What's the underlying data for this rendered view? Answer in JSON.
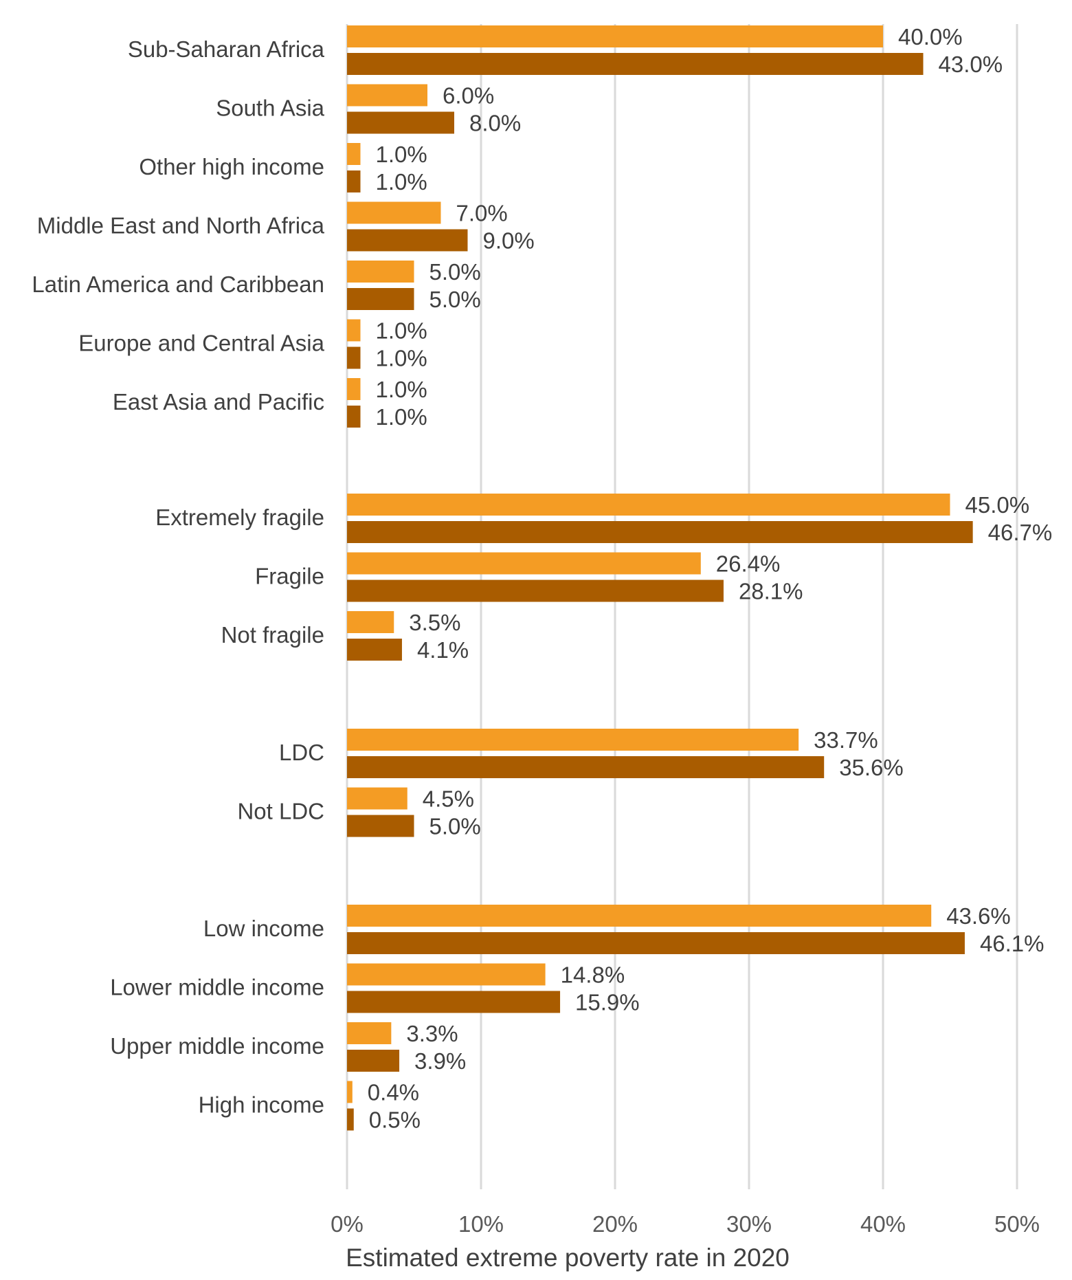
{
  "chart_data": {
    "type": "bar",
    "orientation": "horizontal",
    "xlabel": "Estimated extreme poverty rate in 2020",
    "ylabel": "",
    "title": "",
    "xlim": [
      0,
      50
    ],
    "x_ticks": [
      "0%",
      "10%",
      "20%",
      "30%",
      "40%",
      "50%"
    ],
    "grid": "vertical",
    "legend": "none",
    "categories": [
      "Sub-Saharan Africa",
      "South Asia",
      "Other high income",
      "Middle East and North Africa",
      "Latin America and Caribbean",
      "Europe and Central Asia",
      "East Asia and Pacific",
      "Extremely fragile",
      "Fragile",
      "Not fragile",
      "LDC",
      "Not LDC",
      "Low income",
      "Lower middle income",
      "Upper middle income",
      "High income"
    ],
    "groups": [
      {
        "categories": [
          "Sub-Saharan Africa",
          "South Asia",
          "Other high income",
          "Middle East and North Africa",
          "Latin America and Caribbean",
          "Europe and Central Asia",
          "East Asia and Pacific"
        ]
      },
      {
        "categories": [
          "Extremely fragile",
          "Fragile",
          "Not fragile"
        ]
      },
      {
        "categories": [
          "LDC",
          "Not LDC"
        ]
      },
      {
        "categories": [
          "Low income",
          "Lower middle income",
          "Upper middle income",
          "High income"
        ]
      }
    ],
    "series": [
      {
        "color": "#f49c24",
        "values": [
          40.0,
          6.0,
          1.0,
          7.0,
          5.0,
          1.0,
          1.0,
          45.0,
          26.4,
          3.5,
          33.7,
          4.5,
          43.6,
          14.8,
          3.3,
          0.4
        ],
        "labels": [
          "40.0%",
          "6.0%",
          "1.0%",
          "7.0%",
          "5.0%",
          "1.0%",
          "1.0%",
          "45.0%",
          "26.4%",
          "3.5%",
          "33.7%",
          "4.5%",
          "43.6%",
          "14.8%",
          "3.3%",
          "0.4%"
        ]
      },
      {
        "color": "#a95c00",
        "values": [
          43.0,
          8.0,
          1.0,
          9.0,
          5.0,
          1.0,
          1.0,
          46.7,
          28.1,
          4.1,
          35.6,
          5.0,
          46.1,
          15.9,
          3.9,
          0.5
        ],
        "labels": [
          "43.0%",
          "8.0%",
          "1.0%",
          "9.0%",
          "5.0%",
          "1.0%",
          "1.0%",
          "46.7%",
          "28.1%",
          "4.1%",
          "35.6%",
          "5.0%",
          "46.1%",
          "15.9%",
          "3.9%",
          "0.5%"
        ]
      }
    ]
  }
}
